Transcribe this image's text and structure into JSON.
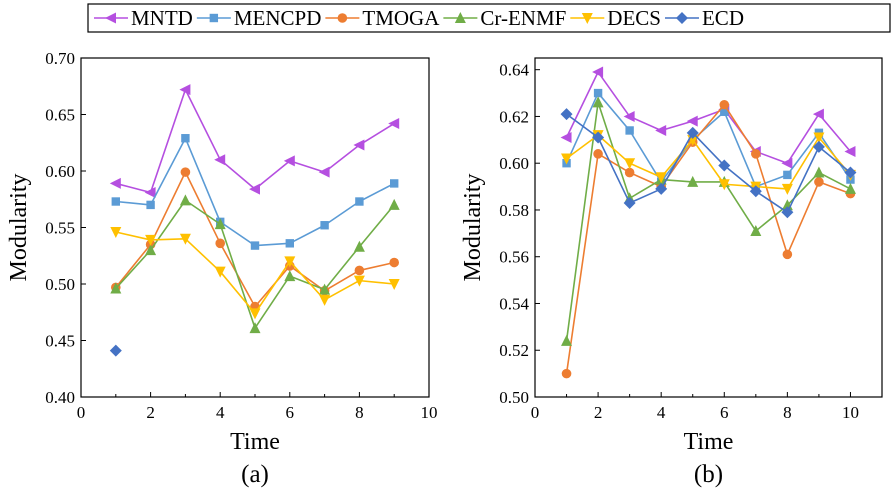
{
  "legend": {
    "entries": [
      "MNTD",
      "MENCPD",
      "TMOGA",
      "Cr-ENMF",
      "DECS",
      "ECD"
    ]
  },
  "series_styles": [
    {
      "name": "MNTD",
      "color": "#b54fe0",
      "marker": "triangle-left"
    },
    {
      "name": "MENCPD",
      "color": "#5b9bd5",
      "marker": "square"
    },
    {
      "name": "TMOGA",
      "color": "#ed7d31",
      "marker": "circle"
    },
    {
      "name": "Cr-ENMF",
      "color": "#70ad47",
      "marker": "triangle-up"
    },
    {
      "name": "DECS",
      "color": "#ffc000",
      "marker": "triangle-down"
    },
    {
      "name": "ECD",
      "color": "#4472c4",
      "marker": "diamond"
    }
  ],
  "chart_data": [
    {
      "type": "line",
      "caption": "(a)",
      "xlabel": "Time",
      "ylabel": "Modularity",
      "xlim": [
        0,
        10
      ],
      "ylim": [
        0.4,
        0.7
      ],
      "xticks": [
        "0",
        "2",
        "4",
        "6",
        "8",
        "10"
      ],
      "yticks": [
        "0.40",
        "0.45",
        "0.50",
        "0.55",
        "0.60",
        "0.65",
        "0.70"
      ],
      "grid": false,
      "x": [
        1,
        2,
        3,
        4,
        5,
        6,
        7,
        8,
        9
      ],
      "series": [
        {
          "name": "MNTD",
          "values": [
            0.589,
            0.581,
            0.672,
            0.61,
            0.584,
            0.609,
            0.599,
            0.623,
            0.642
          ]
        },
        {
          "name": "MENCPD",
          "values": [
            0.573,
            0.57,
            0.629,
            0.555,
            0.534,
            0.536,
            0.552,
            0.573,
            0.589
          ]
        },
        {
          "name": "TMOGA",
          "values": [
            0.497,
            0.535,
            0.599,
            0.536,
            0.48,
            0.516,
            0.494,
            0.512,
            0.519
          ]
        },
        {
          "name": "Cr-ENMF",
          "values": [
            0.496,
            0.53,
            0.574,
            0.553,
            0.461,
            0.507,
            0.495,
            0.533,
            0.57
          ]
        },
        {
          "name": "DECS",
          "values": [
            0.546,
            0.539,
            0.54,
            0.511,
            0.474,
            0.52,
            0.486,
            0.503,
            0.5
          ]
        },
        {
          "name": "ECD",
          "values": [
            0.441,
            null,
            null,
            null,
            null,
            null,
            null,
            null,
            null
          ]
        }
      ]
    },
    {
      "type": "line",
      "caption": "(b)",
      "xlabel": "Time",
      "ylabel": "Modularity",
      "xlim": [
        0,
        11
      ],
      "ylim": [
        0.5,
        0.645
      ],
      "xticks": [
        "0",
        "2",
        "4",
        "6",
        "8",
        "10"
      ],
      "yticks": [
        "0.50",
        "0.52",
        "0.54",
        "0.56",
        "0.58",
        "0.60",
        "0.62",
        "0.64"
      ],
      "grid": false,
      "x": [
        1,
        2,
        3,
        4,
        5,
        6,
        7,
        8,
        9,
        10
      ],
      "series": [
        {
          "name": "MNTD",
          "values": [
            0.611,
            0.639,
            0.62,
            0.614,
            0.618,
            0.623,
            0.605,
            0.6,
            0.621,
            0.605
          ]
        },
        {
          "name": "MENCPD",
          "values": [
            0.6,
            0.63,
            0.614,
            0.592,
            0.61,
            0.622,
            0.59,
            0.595,
            0.613,
            0.593
          ]
        },
        {
          "name": "TMOGA",
          "values": [
            0.51,
            0.604,
            0.596,
            0.59,
            0.609,
            0.625,
            0.604,
            0.561,
            0.592,
            0.587
          ]
        },
        {
          "name": "Cr-ENMF",
          "values": [
            0.524,
            0.626,
            0.585,
            0.593,
            0.592,
            0.592,
            0.571,
            0.582,
            0.596,
            0.589
          ]
        },
        {
          "name": "DECS",
          "values": [
            0.602,
            0.612,
            0.6,
            0.594,
            0.61,
            0.591,
            0.59,
            0.589,
            0.611,
            0.595
          ]
        },
        {
          "name": "ECD",
          "values": [
            0.621,
            0.611,
            0.583,
            0.589,
            0.613,
            0.599,
            0.588,
            0.579,
            0.607,
            0.596
          ]
        }
      ]
    }
  ]
}
